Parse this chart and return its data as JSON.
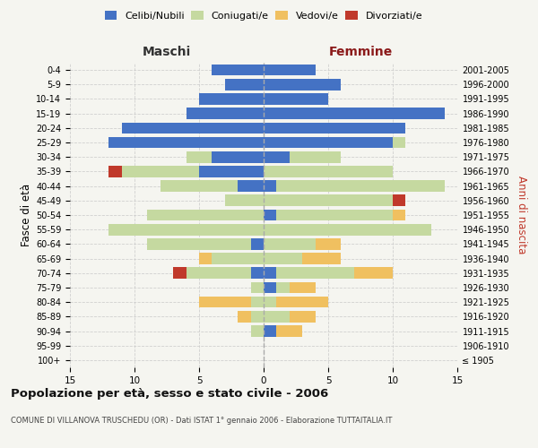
{
  "age_groups": [
    "100+",
    "95-99",
    "90-94",
    "85-89",
    "80-84",
    "75-79",
    "70-74",
    "65-69",
    "60-64",
    "55-59",
    "50-54",
    "45-49",
    "40-44",
    "35-39",
    "30-34",
    "25-29",
    "20-24",
    "15-19",
    "10-14",
    "5-9",
    "0-4"
  ],
  "birth_years": [
    "≤ 1905",
    "1906-1910",
    "1911-1915",
    "1916-1920",
    "1921-1925",
    "1926-1930",
    "1931-1935",
    "1936-1940",
    "1941-1945",
    "1946-1950",
    "1951-1955",
    "1956-1960",
    "1961-1965",
    "1966-1970",
    "1971-1975",
    "1976-1980",
    "1981-1985",
    "1986-1990",
    "1991-1995",
    "1996-2000",
    "2001-2005"
  ],
  "male": {
    "celibi": [
      0,
      0,
      0,
      0,
      0,
      0,
      1,
      0,
      1,
      0,
      0,
      0,
      2,
      5,
      4,
      12,
      11,
      6,
      5,
      3,
      4
    ],
    "coniugati": [
      0,
      0,
      1,
      1,
      1,
      1,
      5,
      4,
      8,
      12,
      9,
      3,
      6,
      6,
      2,
      0,
      0,
      0,
      0,
      0,
      0
    ],
    "vedovi": [
      0,
      0,
      0,
      1,
      4,
      0,
      0,
      1,
      0,
      0,
      0,
      0,
      0,
      0,
      0,
      0,
      0,
      0,
      0,
      0,
      0
    ],
    "divorziati": [
      0,
      0,
      0,
      0,
      0,
      0,
      1,
      0,
      0,
      0,
      0,
      0,
      0,
      1,
      0,
      0,
      0,
      0,
      0,
      0,
      0
    ]
  },
  "female": {
    "nubili": [
      0,
      0,
      1,
      0,
      0,
      1,
      1,
      0,
      0,
      0,
      1,
      0,
      1,
      0,
      2,
      10,
      11,
      14,
      5,
      6,
      4
    ],
    "coniugate": [
      0,
      0,
      0,
      2,
      1,
      1,
      6,
      3,
      4,
      13,
      9,
      10,
      13,
      10,
      4,
      1,
      0,
      0,
      0,
      0,
      0
    ],
    "vedove": [
      0,
      0,
      2,
      2,
      4,
      2,
      3,
      3,
      2,
      0,
      1,
      0,
      0,
      0,
      0,
      0,
      0,
      0,
      0,
      0,
      0
    ],
    "divorziate": [
      0,
      0,
      0,
      0,
      0,
      0,
      0,
      0,
      0,
      0,
      0,
      1,
      0,
      0,
      0,
      0,
      0,
      0,
      0,
      0,
      0
    ]
  },
  "color_celibi": "#4472c4",
  "color_coniugati": "#c5d9a0",
  "color_vedovi": "#f0c060",
  "color_divorziati": "#c0392b",
  "xlim": 15,
  "title_main": "Popolazione per età, sesso e stato civile - 2006",
  "title_sub": "COMUNE DI VILLANOVA TRUSCHEDU (OR) - Dati ISTAT 1° gennaio 2006 - Elaborazione TUTTAITALIA.IT",
  "ylabel_left": "Fasce di età",
  "ylabel_right": "Anni di nascita",
  "bg_color": "#f5f5f0",
  "grid_color": "#cccccc"
}
